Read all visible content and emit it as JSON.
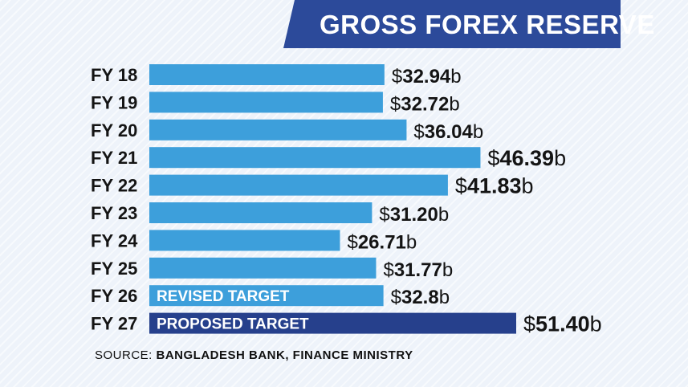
{
  "title": "GROSS FOREX RESERVE",
  "source": {
    "label": "SOURCE:",
    "text": "BANGLADESH BANK, FINANCE MINISTRY"
  },
  "colors": {
    "bar": "#3d9fdb",
    "bar_proposed": "#26408c",
    "title_bg": "#2c4a9a",
    "background": "#eef3fa"
  },
  "chart_data": {
    "type": "bar",
    "orientation": "horizontal",
    "title": "GROSS FOREX RESERVE",
    "categories": [
      "FY 18",
      "FY 19",
      "FY 20",
      "FY 21",
      "FY 22",
      "FY 23",
      "FY 24",
      "FY 25",
      "FY 26",
      "FY 27"
    ],
    "values": [
      32.94,
      32.72,
      36.04,
      46.39,
      41.83,
      31.2,
      26.71,
      31.77,
      32.8,
      51.4
    ],
    "value_labels": [
      {
        "prefix": "$",
        "number": "32.94",
        "suffix": "b"
      },
      {
        "prefix": "$",
        "number": "32.72",
        "suffix": "b"
      },
      {
        "prefix": "$",
        "number": "36.04",
        "suffix": "b"
      },
      {
        "prefix": "$",
        "number": "46.39",
        "suffix": "b"
      },
      {
        "prefix": "$",
        "number": "41.83",
        "suffix": "b"
      },
      {
        "prefix": "$",
        "number": "31.20",
        "suffix": "b"
      },
      {
        "prefix": "$",
        "number": "26.71",
        "suffix": "b"
      },
      {
        "prefix": "$",
        "number": "31.77",
        "suffix": "b"
      },
      {
        "prefix": "$",
        "number": "32.8",
        "suffix": "b"
      },
      {
        "prefix": "$",
        "number": "51.40",
        "suffix": "b"
      }
    ],
    "bar_notes": [
      "",
      "",
      "",
      "",
      "",
      "",
      "",
      "",
      "REVISED TARGET",
      "PROPOSED TARGET"
    ],
    "highlight": [
      "",
      "",
      "",
      "",
      "",
      "",
      "",
      "",
      "",
      "proposed"
    ],
    "unit": "billion USD",
    "xlim": [
      0,
      51.4
    ],
    "grid": false,
    "legend": "none"
  }
}
